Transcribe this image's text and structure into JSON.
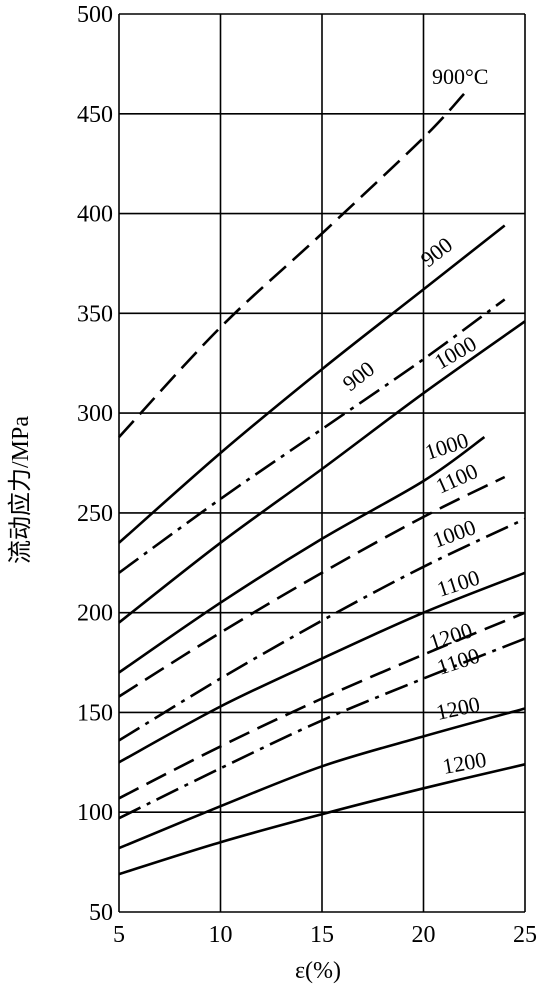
{
  "chart_data": {
    "type": "line",
    "xlabel": "ε(%)",
    "ylabel": "流动应力/MPa",
    "xlim": [
      5,
      25
    ],
    "ylim": [
      50,
      500
    ],
    "x_ticks": [
      "5",
      "10",
      "15",
      "20",
      "25"
    ],
    "y_ticks": [
      "50",
      "100",
      "150",
      "200",
      "250",
      "300",
      "350",
      "400",
      "450",
      "500"
    ],
    "grid": true,
    "series": [
      {
        "name": "900°C",
        "style": "dashed",
        "x": [
          5,
          10,
          15,
          20,
          22
        ],
        "y": [
          288,
          343,
          390,
          438,
          460
        ]
      },
      {
        "name": "900",
        "style": "solid",
        "x": [
          5,
          10,
          15,
          20,
          24
        ],
        "y": [
          235,
          280,
          322,
          362,
          394
        ]
      },
      {
        "name": "1000",
        "style": "solid",
        "x": [
          5,
          10,
          15,
          20,
          25
        ],
        "y": [
          195,
          235,
          272,
          310,
          346
        ]
      },
      {
        "name": "900",
        "style": "dashdot",
        "x": [
          5,
          10,
          15,
          20,
          24
        ],
        "y": [
          220,
          257,
          292,
          327,
          357
        ]
      },
      {
        "name": "1000",
        "style": "solid",
        "x": [
          5,
          10,
          15,
          20,
          23
        ],
        "y": [
          170,
          205,
          237,
          266,
          288
        ]
      },
      {
        "name": "1100",
        "style": "dashed",
        "x": [
          5,
          10,
          15,
          20,
          24
        ],
        "y": [
          158,
          190,
          220,
          248,
          268
        ]
      },
      {
        "name": "1000",
        "style": "dashdot",
        "x": [
          5,
          10,
          15,
          20,
          25
        ],
        "y": [
          136,
          167,
          196,
          223,
          247
        ]
      },
      {
        "name": "1100",
        "style": "solid",
        "x": [
          5,
          10,
          15,
          20,
          25
        ],
        "y": [
          125,
          153,
          177,
          200,
          220
        ]
      },
      {
        "name": "1200",
        "style": "dashed",
        "x": [
          5,
          10,
          15,
          20,
          25
        ],
        "y": [
          107,
          133,
          157,
          179,
          200
        ]
      },
      {
        "name": "1100",
        "style": "dashdot",
        "x": [
          5,
          10,
          15,
          20,
          25
        ],
        "y": [
          97,
          122,
          146,
          167,
          187
        ]
      },
      {
        "name": "1200",
        "style": "solid",
        "x": [
          5,
          10,
          15,
          20,
          25
        ],
        "y": [
          82,
          103,
          123,
          138,
          152
        ]
      },
      {
        "name": "1200",
        "style": "solid",
        "x": [
          5,
          10,
          15,
          20,
          25
        ],
        "y": [
          69,
          85,
          99,
          112,
          124
        ]
      }
    ],
    "annotations": [
      "900°C",
      "900",
      "900",
      "1000",
      "1000",
      "1100",
      "1000",
      "1100",
      "1200",
      "1100",
      "1200",
      "1200"
    ]
  }
}
